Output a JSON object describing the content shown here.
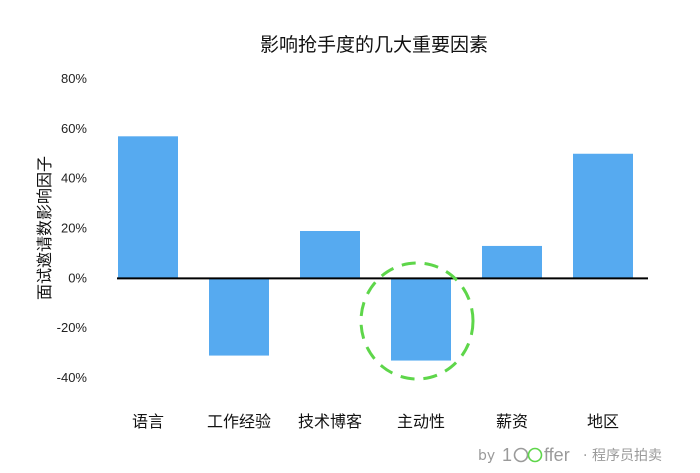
{
  "chart_data": {
    "type": "bar",
    "title": "影响抢手度的几大重要因素",
    "ylabel": "面试邀请数影响因子",
    "xlabel": "",
    "categories": [
      "语言",
      "工作经验",
      "技术博客",
      "主动性",
      "薪资",
      "地区"
    ],
    "values": [
      57,
      -31,
      19,
      -33,
      13,
      50
    ],
    "ylim": [
      -40,
      80
    ],
    "yticks": [
      "80%",
      "60%",
      "40%",
      "20%",
      "0%",
      "-20%",
      "-40%"
    ],
    "ytick_values": [
      80,
      60,
      40,
      20,
      0,
      -20,
      -40
    ],
    "grid": false,
    "bar_color": "#56aaf0",
    "highlight": {
      "category": "主动性",
      "style": "dashed-ellipse",
      "color": "#5ed64a"
    }
  },
  "watermark": {
    "by": "by",
    "brand_num": "1",
    "brand_rest": "ffer",
    "dot": "·",
    "suffix": "程序员拍卖"
  }
}
